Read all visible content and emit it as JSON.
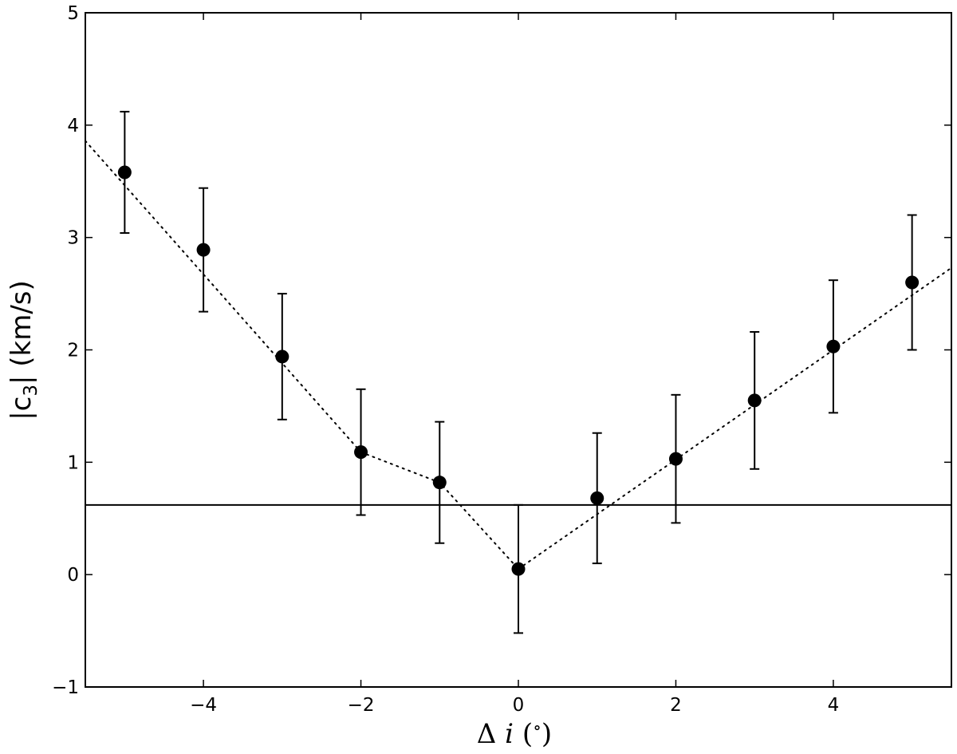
{
  "chart_data": {
    "type": "scatter",
    "title": "",
    "xlabel": "Δ i  (°)",
    "ylabel": "|c3|  (km/s)",
    "xlim": [
      -5.5,
      5.5
    ],
    "ylim": [
      -1,
      5
    ],
    "xticks": [
      -4,
      -2,
      0,
      2,
      4
    ],
    "xtick_labels": [
      "−4",
      "−2",
      "0",
      "2",
      "4"
    ],
    "yticks": [
      -1,
      0,
      1,
      2,
      3,
      4,
      5
    ],
    "ytick_labels": [
      "−1",
      "0",
      "1",
      "2",
      "3",
      "4",
      "5"
    ],
    "grid": false,
    "series": [
      {
        "x": [
          -5,
          -4,
          -3,
          -2,
          -1,
          0,
          1,
          2,
          3,
          4,
          5
        ],
        "y": [
          3.58,
          2.89,
          1.94,
          1.09,
          0.82,
          0.05,
          0.68,
          1.03,
          1.55,
          2.03,
          2.6
        ],
        "yerr": [
          0.54,
          0.55,
          0.56,
          0.56,
          0.54,
          0.57,
          0.58,
          0.57,
          0.61,
          0.59,
          0.6
        ],
        "marker": "circle",
        "color": "#000000"
      }
    ],
    "trend_line": {
      "style": "dotted",
      "left_segment": {
        "x": [
          -5.5,
          -2
        ],
        "y": [
          3.86,
          1.09
        ]
      },
      "right_segment": {
        "x": [
          0,
          5.5
        ],
        "y": [
          0.05,
          2.73
        ]
      },
      "middle_points": {
        "x": [
          -2,
          -1,
          0
        ],
        "y": [
          1.09,
          0.82,
          0.05
        ]
      }
    },
    "reference_line": {
      "y": 0.62,
      "style": "solid"
    }
  }
}
